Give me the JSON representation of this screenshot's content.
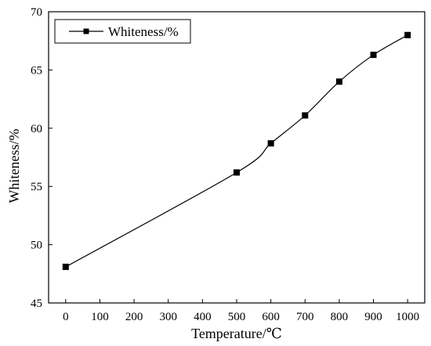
{
  "chart_data": {
    "type": "line",
    "xlabel": "Temperature/℃",
    "ylabel": "Whiteness/%",
    "xlim": [
      -50,
      1050
    ],
    "ylim": [
      45,
      70
    ],
    "xticks": [
      0,
      100,
      200,
      300,
      400,
      500,
      600,
      700,
      800,
      900,
      1000
    ],
    "yticks": [
      45,
      50,
      55,
      60,
      65,
      70
    ],
    "grid": false,
    "legend": {
      "position": "top-left",
      "entries": [
        "Whiteness/%"
      ]
    },
    "series": [
      {
        "name": "Whiteness/%",
        "marker": "square",
        "color": "#000000",
        "x": [
          0,
          500,
          600,
          700,
          800,
          900,
          1000
        ],
        "y": [
          48.1,
          56.2,
          58.7,
          61.1,
          64.0,
          66.3,
          68.0
        ]
      }
    ]
  }
}
